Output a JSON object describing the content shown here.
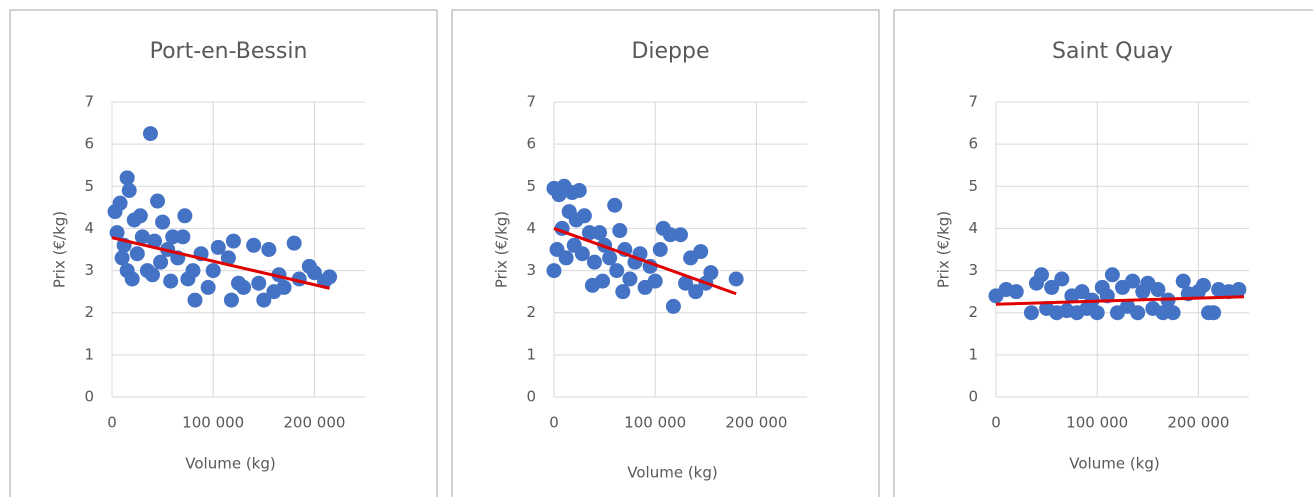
{
  "chart_data": [
    {
      "type": "scatter",
      "title": "Port-en-Bessin",
      "x_label": "Volume (kg)",
      "y_label": "Prix (€/kg)",
      "color": "#4472c4",
      "grid": true,
      "xlim": [
        0,
        250000
      ],
      "ylim": [
        0,
        7
      ],
      "xticks": [
        0,
        {
          "value": 100000,
          "label": "100 000"
        },
        {
          "value": 200000,
          "label": "200 000"
        }
      ],
      "yticks": [
        0,
        1,
        2,
        3,
        4,
        5,
        6,
        7
      ],
      "x": [
        3000,
        5000,
        8000,
        10000,
        12000,
        15000,
        17000,
        15000,
        20000,
        22000,
        25000,
        28000,
        30000,
        35000,
        38000,
        40000,
        42000,
        45000,
        48000,
        50000,
        55000,
        58000,
        60000,
        65000,
        70000,
        72000,
        75000,
        80000,
        82000,
        88000,
        95000,
        100000,
        105000,
        115000,
        118000,
        120000,
        125000,
        130000,
        140000,
        145000,
        150000,
        155000,
        160000,
        165000,
        170000,
        180000,
        185000,
        195000,
        200000,
        210000,
        215000
      ],
      "values": [
        4.4,
        3.9,
        4.6,
        3.3,
        3.6,
        5.2,
        4.9,
        3.0,
        2.8,
        4.2,
        3.4,
        4.3,
        3.8,
        3.0,
        6.25,
        2.9,
        3.7,
        4.65,
        3.2,
        4.15,
        3.5,
        2.75,
        3.8,
        3.3,
        3.8,
        4.3,
        2.8,
        3.0,
        2.3,
        3.4,
        2.6,
        3.0,
        3.55,
        3.3,
        2.3,
        3.7,
        2.7,
        2.6,
        3.6,
        2.7,
        2.3,
        3.5,
        2.5,
        2.9,
        2.6,
        3.65,
        2.8,
        3.1,
        2.95,
        2.75,
        2.85
      ],
      "trend": {
        "color": "#e00000",
        "x": [
          0,
          215000
        ],
        "values": [
          3.78,
          2.58
        ]
      }
    },
    {
      "type": "scatter",
      "title": "Dieppe",
      "x_label": "Volume (kg)",
      "y_label": "Prix (€/kg)",
      "color": "#4472c4",
      "grid": true,
      "xlim": [
        0,
        250000
      ],
      "ylim": [
        0,
        7
      ],
      "xticks": [
        0,
        {
          "value": 100000,
          "label": "100 000"
        },
        {
          "value": 200000,
          "label": "200 000"
        }
      ],
      "yticks": [
        0,
        1,
        2,
        3,
        4,
        5,
        6,
        7
      ],
      "x": [
        0,
        0,
        3000,
        5000,
        8000,
        10000,
        12000,
        15000,
        18000,
        20000,
        22000,
        25000,
        28000,
        30000,
        35000,
        38000,
        40000,
        45000,
        48000,
        50000,
        55000,
        60000,
        62000,
        65000,
        68000,
        70000,
        75000,
        80000,
        85000,
        90000,
        95000,
        100000,
        105000,
        108000,
        115000,
        118000,
        125000,
        130000,
        135000,
        140000,
        145000,
        150000,
        155000,
        180000
      ],
      "values": [
        3.0,
        4.95,
        3.5,
        4.8,
        4.0,
        5.0,
        3.3,
        4.4,
        4.85,
        3.6,
        4.2,
        4.9,
        3.4,
        4.3,
        3.9,
        2.65,
        3.2,
        3.9,
        2.75,
        3.6,
        3.3,
        4.55,
        3.0,
        3.95,
        2.5,
        3.5,
        2.8,
        3.2,
        3.4,
        2.6,
        3.1,
        2.75,
        3.5,
        4.0,
        3.85,
        2.15,
        3.85,
        2.7,
        3.3,
        2.5,
        3.45,
        2.7,
        2.95,
        2.8
      ],
      "trend": {
        "color": "#e00000",
        "x": [
          0,
          180000
        ],
        "values": [
          4.0,
          2.45
        ]
      }
    },
    {
      "type": "scatter",
      "title": "Saint Quay",
      "x_label": "Volume (kg)",
      "y_label": "Prix (€/kg)",
      "color": "#4472c4",
      "grid": true,
      "xlim": [
        0,
        250000
      ],
      "ylim": [
        0,
        7
      ],
      "xticks": [
        0,
        {
          "value": 100000,
          "label": "100 000"
        },
        {
          "value": 200000,
          "label": "200 000"
        }
      ],
      "yticks": [
        0,
        1,
        2,
        3,
        4,
        5,
        6,
        7
      ],
      "x": [
        0,
        10000,
        20000,
        35000,
        40000,
        45000,
        50000,
        55000,
        60000,
        65000,
        70000,
        75000,
        80000,
        85000,
        90000,
        95000,
        100000,
        105000,
        110000,
        115000,
        120000,
        125000,
        130000,
        135000,
        140000,
        145000,
        150000,
        155000,
        160000,
        165000,
        170000,
        175000,
        185000,
        190000,
        200000,
        205000,
        210000,
        215000,
        220000,
        230000,
        240000
      ],
      "values": [
        2.4,
        2.55,
        2.5,
        2.0,
        2.7,
        2.9,
        2.1,
        2.6,
        2.0,
        2.8,
        2.05,
        2.4,
        2.0,
        2.5,
        2.1,
        2.3,
        2.0,
        2.6,
        2.4,
        2.9,
        2.0,
        2.6,
        2.15,
        2.75,
        2.0,
        2.5,
        2.7,
        2.1,
        2.55,
        2.0,
        2.3,
        2.0,
        2.75,
        2.45,
        2.5,
        2.65,
        2.0,
        2.0,
        2.55,
        2.5,
        2.55
      ],
      "trend": {
        "color": "#e00000",
        "x": [
          0,
          245000
        ],
        "values": [
          2.2,
          2.38
        ]
      }
    }
  ]
}
